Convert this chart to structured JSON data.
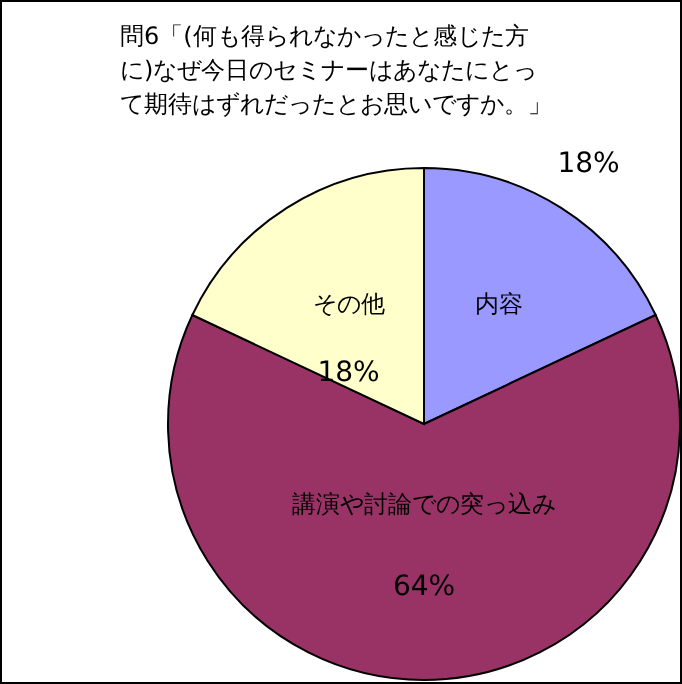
{
  "chart_data": {
    "type": "pie",
    "title": "問6「(何も得られなかったと感じた方に)なぜ今日のセミナーはあなたにとって期待はずれだったとお思いですか。」",
    "categories": [
      "内容",
      "講演や討論での突っ込み",
      "その他"
    ],
    "values": [
      18,
      64,
      18
    ],
    "colors": [
      "#9999ff",
      "#993366",
      "#ffffcc"
    ],
    "value_labels": [
      "18%",
      "64%",
      "18%"
    ]
  }
}
